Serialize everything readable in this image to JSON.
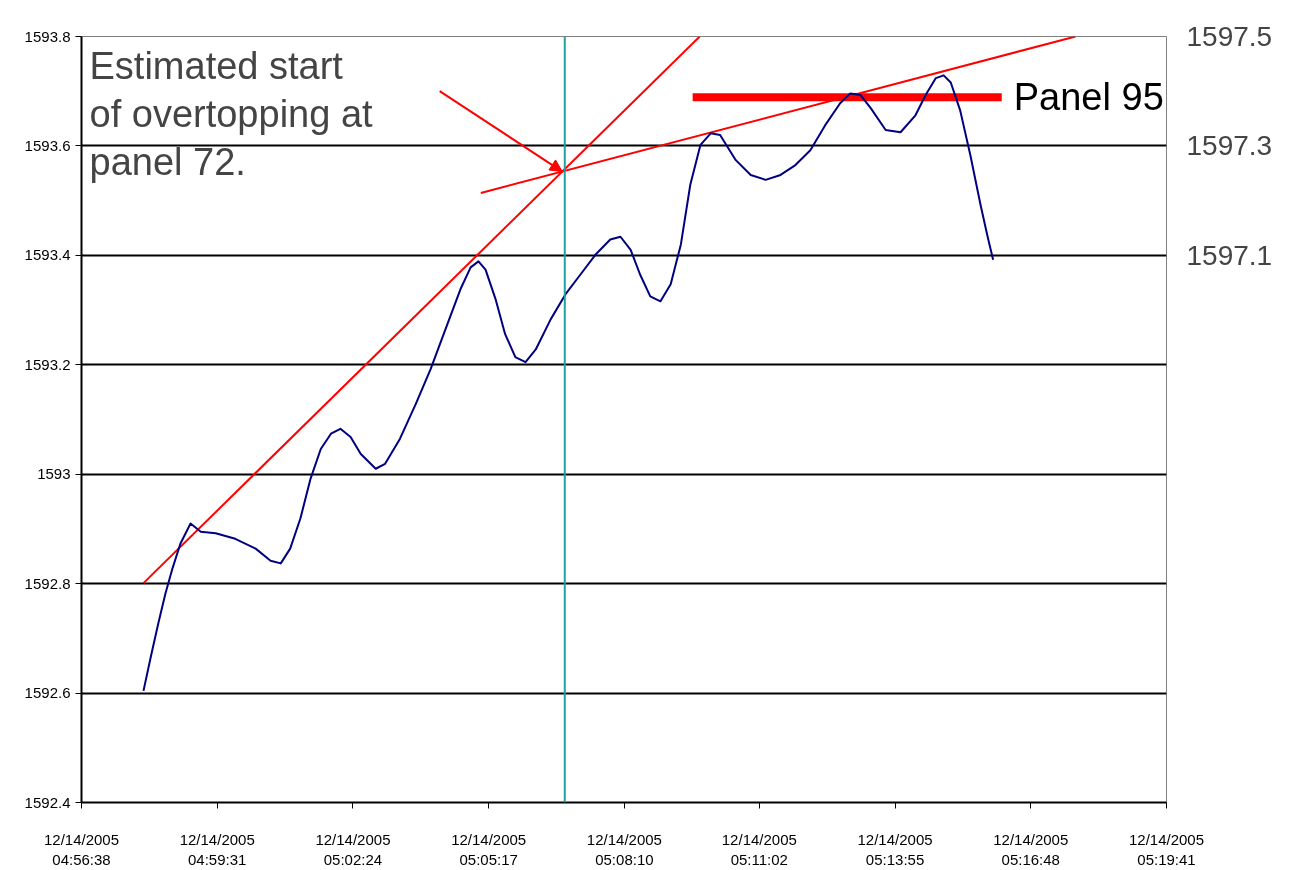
{
  "chart_data": {
    "type": "line",
    "xlim": [
      "2005-12-14T04:56:38",
      "2005-12-14T05:19:41"
    ],
    "xticks": [
      {
        "value": "2005-12-14T04:56:38",
        "label": "12/14/2005\n04:56:38"
      },
      {
        "value": "2005-12-14T04:59:31",
        "label": "12/14/2005\n04:59:31"
      },
      {
        "value": "2005-12-14T05:02:24",
        "label": "12/14/2005\n05:02:24"
      },
      {
        "value": "2005-12-14T05:05:17",
        "label": "12/14/2005\n05:05:17"
      },
      {
        "value": "2005-12-14T05:08:10",
        "label": "12/14/2005\n05:08:10"
      },
      {
        "value": "2005-12-14T05:11:02",
        "label": "12/14/2005\n05:11:02"
      },
      {
        "value": "2005-12-14T05:13:55",
        "label": "12/14/2005\n05:13:55"
      },
      {
        "value": "2005-12-14T05:16:48",
        "label": "12/14/2005\n05:16:48"
      },
      {
        "value": "2005-12-14T05:19:41",
        "label": "12/14/2005\n05:19:41"
      }
    ],
    "ylim": [
      1592.4,
      1593.8
    ],
    "yticks": [
      1592.4,
      1592.6,
      1592.8,
      1593,
      1593.2,
      1593.4,
      1593.6,
      1593.8
    ],
    "y2lim": [
      1596.1,
      1597.5
    ],
    "y2ticks": [
      1597.1,
      1597.3,
      1597.5
    ],
    "grid": "y",
    "marker": "none",
    "series": [
      {
        "color": "#000080",
        "x": [
          "2005-12-14T04:57:57",
          "2005-12-14T04:58:06",
          "2005-12-14T04:58:16",
          "2005-12-14T04:58:25",
          "2005-12-14T04:58:34",
          "2005-12-14T04:58:44",
          "2005-12-14T04:58:57",
          "2005-12-14T04:59:10",
          "2005-12-14T04:59:29",
          "2005-12-14T04:59:54",
          "2005-12-14T05:00:20",
          "2005-12-14T05:00:39",
          "2005-12-14T05:00:52",
          "2005-12-14T05:01:04",
          "2005-12-14T05:01:17",
          "2005-12-14T05:01:30",
          "2005-12-14T05:01:43",
          "2005-12-14T05:01:56",
          "2005-12-14T05:02:08",
          "2005-12-14T05:02:21",
          "2005-12-14T05:02:34",
          "2005-12-14T05:02:53",
          "2005-12-14T05:03:05",
          "2005-12-14T05:03:24",
          "2005-12-14T05:03:44",
          "2005-12-14T05:04:03",
          "2005-12-14T05:04:22",
          "2005-12-14T05:04:41",
          "2005-12-14T05:04:54",
          "2005-12-14T05:05:04",
          "2005-12-14T05:05:13",
          "2005-12-14T05:05:26",
          "2005-12-14T05:05:38",
          "2005-12-14T05:05:51",
          "2005-12-14T05:06:04",
          "2005-12-14T05:06:17",
          "2005-12-14T05:06:36",
          "2005-12-14T05:06:55",
          "2005-12-14T05:07:14",
          "2005-12-14T05:07:33",
          "2005-12-14T05:07:52",
          "2005-12-14T05:08:05",
          "2005-12-14T05:08:18",
          "2005-12-14T05:08:30",
          "2005-12-14T05:08:43",
          "2005-12-14T05:08:56",
          "2005-12-14T05:09:09",
          "2005-12-14T05:09:22",
          "2005-12-14T05:09:34",
          "2005-12-14T05:09:47",
          "2005-12-14T05:10:00",
          "2005-12-14T05:10:12",
          "2005-12-14T05:10:32",
          "2005-12-14T05:10:51",
          "2005-12-14T05:11:10",
          "2005-12-14T05:11:29",
          "2005-12-14T05:11:48",
          "2005-12-14T05:12:07",
          "2005-12-14T05:12:26",
          "2005-12-14T05:12:45",
          "2005-12-14T05:12:58",
          "2005-12-14T05:13:11",
          "2005-12-14T05:13:24",
          "2005-12-14T05:13:43",
          "2005-12-14T05:14:02",
          "2005-12-14T05:14:21",
          "2005-12-14T05:14:34",
          "2005-12-14T05:14:47",
          "2005-12-14T05:14:57",
          "2005-12-14T05:15:06",
          "2005-12-14T05:15:18",
          "2005-12-14T05:15:31",
          "2005-12-14T05:15:44",
          "2005-12-14T05:15:53",
          "2005-12-14T05:16:00"
        ],
        "values": [
          1592.604,
          1592.664,
          1592.728,
          1592.782,
          1592.828,
          1592.873,
          1592.91,
          1592.895,
          1592.892,
          1592.882,
          1592.864,
          1592.842,
          1592.837,
          1592.864,
          1592.919,
          1592.992,
          1593.046,
          1593.074,
          1593.083,
          1593.068,
          1593.037,
          1593.01,
          1593.019,
          1593.065,
          1593.128,
          1593.192,
          1593.265,
          1593.338,
          1593.378,
          1593.389,
          1593.374,
          1593.319,
          1593.256,
          1593.214,
          1593.205,
          1593.228,
          1593.283,
          1593.329,
          1593.365,
          1593.401,
          1593.429,
          1593.434,
          1593.41,
          1593.365,
          1593.325,
          1593.316,
          1593.347,
          1593.42,
          1593.529,
          1593.602,
          1593.623,
          1593.62,
          1593.574,
          1593.547,
          1593.538,
          1593.547,
          1593.565,
          1593.592,
          1593.638,
          1593.678,
          1593.696,
          1593.693,
          1593.669,
          1593.629,
          1593.625,
          1593.656,
          1593.693,
          1593.724,
          1593.729,
          1593.716,
          1593.665,
          1593.583,
          1593.492,
          1593.434,
          1593.392
        ]
      },
      {
        "color": "#ff0000",
        "x": [
          "2005-12-14T04:57:57",
          "2005-12-14T05:09:46"
        ],
        "values": [
          1592.801,
          1593.8
        ]
      },
      {
        "color": "#ff0000",
        "x": [
          "2005-12-14T05:05:07",
          "2005-12-14T05:17:45"
        ],
        "values": [
          1593.514,
          1593.8
        ]
      },
      {
        "name": "Panel 95",
        "color": "#ff0000",
        "x": [
          "2005-12-14T05:09:37",
          "2005-12-14T05:16:11"
        ],
        "values": [
          1593.689,
          1593.689
        ]
      }
    ],
    "ref_lines": [
      {
        "axis": "x",
        "value": "2005-12-14T05:06:54",
        "color": "#20a0a0"
      }
    ],
    "annotations": [
      "Estimated start of overtopping at panel 72."
    ]
  }
}
